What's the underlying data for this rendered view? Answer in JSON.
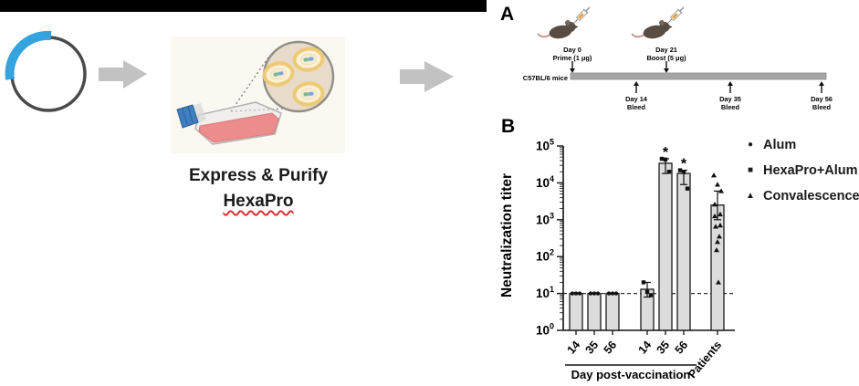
{
  "workflow": {
    "express_line1": "Express & Purify",
    "express_line2": "HexaPro",
    "plasmid_accent_color": "#35a3dd",
    "plasmid_ring_color": "#4a4a4a",
    "arrow_color": "#c2c2c2",
    "flask_cap_color": "#3e7fc0",
    "flask_media_color": "#ec8c8c"
  },
  "panel_a": {
    "label": "A",
    "subject_label": "C57BL/6 mice",
    "injections": [
      {
        "day": "Day 0",
        "detail": "Prime (1 μg)"
      },
      {
        "day": "Day 21",
        "detail": "Boost (5 μg)"
      }
    ],
    "bleeds": [
      {
        "day": "Day 14",
        "detail": "Bleed"
      },
      {
        "day": "Day 35",
        "detail": "Bleed"
      },
      {
        "day": "Day 56",
        "detail": "Bleed"
      }
    ]
  },
  "panel_b": {
    "label": "B"
  },
  "chart_data": {
    "type": "bar",
    "title": "",
    "ylabel": "Neutralization titer",
    "xlabel": "Day post-vaccination",
    "yscale": "log",
    "ylim": [
      1,
      100000
    ],
    "ytick_exponents": [
      0,
      1,
      2,
      3,
      4,
      5
    ],
    "categories": [
      "14",
      "35",
      "56",
      "14",
      "35",
      "56",
      "Patients"
    ],
    "bar_groups": [
      "Alum",
      "Alum",
      "Alum",
      "HexaPro+Alum",
      "HexaPro+Alum",
      "HexaPro+Alum",
      "Convalescence"
    ],
    "values": [
      10,
      10,
      10,
      13,
      34000,
      18000,
      2500
    ],
    "markers": [
      "circle",
      "circle",
      "circle",
      "square",
      "square",
      "square",
      "triangle"
    ],
    "points": [
      [
        10,
        10,
        10
      ],
      [
        10,
        10,
        10
      ],
      [
        10,
        10,
        10
      ],
      [
        20,
        11,
        9
      ],
      [
        45000,
        43000,
        20000
      ],
      [
        22000,
        20000,
        7000
      ],
      [
        16000,
        9000,
        6000,
        2600,
        1400,
        1250,
        700,
        650,
        350,
        250,
        150,
        20
      ]
    ],
    "error_bars": [
      null,
      null,
      null,
      [
        8,
        20
      ],
      [
        18000,
        45000
      ],
      [
        9000,
        22000
      ],
      [
        1000,
        6000
      ]
    ],
    "significance": [
      "",
      "",
      "",
      "",
      "*",
      "*",
      ""
    ],
    "reference_line_y": 10,
    "grid": false,
    "legend_position": "right",
    "legend": [
      {
        "marker": "circle",
        "glyph": "●",
        "label": "Alum"
      },
      {
        "marker": "square",
        "glyph": "■",
        "label": "HexaPro+Alum"
      },
      {
        "marker": "triangle",
        "glyph": "▲",
        "label": "Convalescence"
      }
    ],
    "bar_fill": "#dcdcdc",
    "bar_stroke": "#1a1a1a"
  }
}
